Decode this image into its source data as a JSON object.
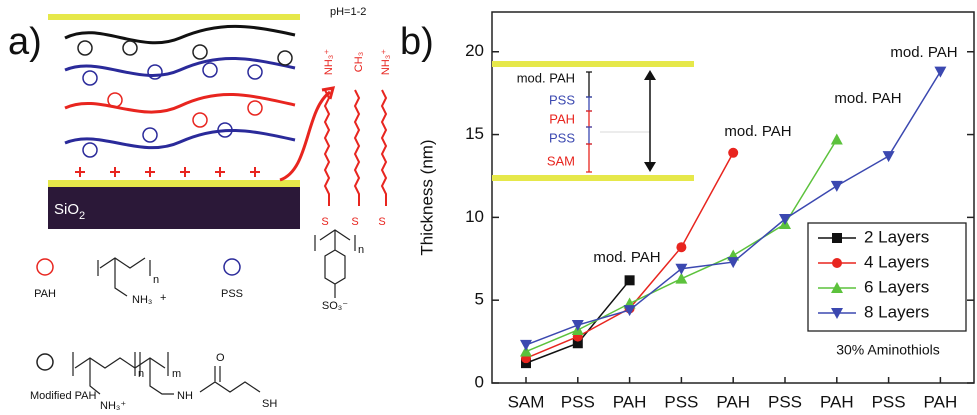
{
  "panel_a": {
    "label": "a)",
    "ph": "pH=1-2",
    "chains": [
      "NH₃⁺",
      "CH₃",
      "NH₃⁺"
    ],
    "thiol": "S",
    "substrate": "SiO",
    "substrate_sub": "2",
    "pah": "PAH",
    "pss": "PSS",
    "modified_pah": "Modified PAH",
    "pah_amine": "NH₃",
    "plus": "+",
    "sulfonate": "SO₃⁻",
    "n": "n",
    "m": "m",
    "amide": "NH",
    "oxygen": "O",
    "sh": "SH",
    "mod_amine": "NH₃⁺"
  },
  "chart_data": {
    "type": "line",
    "label": "b)",
    "y_label": "Thickness (nm)",
    "categories": [
      "SAM",
      "PSS",
      "PAH",
      "PSS",
      "PAH",
      "PSS",
      "PAH",
      "PSS",
      "PAH"
    ],
    "series": [
      {
        "name": "2 Layers",
        "color": "#111111",
        "marker": "square",
        "values": [
          1.2,
          2.4,
          6.2,
          null,
          null,
          null,
          null,
          null,
          null
        ]
      },
      {
        "name": "4 Layers",
        "color": "#e8251f",
        "marker": "circle",
        "values": [
          1.5,
          2.8,
          4.5,
          8.2,
          13.9,
          null,
          null,
          null,
          null
        ]
      },
      {
        "name": "6 Layers",
        "color": "#5cc23c",
        "marker": "triangle-up",
        "values": [
          1.9,
          3.2,
          4.8,
          6.3,
          7.7,
          9.6,
          14.7,
          null,
          null
        ]
      },
      {
        "name": "8 Layers",
        "color": "#3b48b0",
        "marker": "triangle-down",
        "values": [
          2.3,
          3.5,
          4.4,
          6.9,
          7.3,
          9.9,
          11.9,
          13.7,
          18.8
        ]
      }
    ],
    "ylim": [
      0,
      22.4
    ],
    "yticks": [
      0,
      5,
      10,
      15,
      20
    ],
    "legend": "center right",
    "annotations": [
      "mod. PAH",
      "mod. PAH",
      "mod. PAH",
      "mod. PAH",
      "30% Aminothiols"
    ],
    "inset_labels": [
      "mod. PAH",
      "PSS",
      "PAH",
      "PSS",
      "SAM"
    ]
  }
}
